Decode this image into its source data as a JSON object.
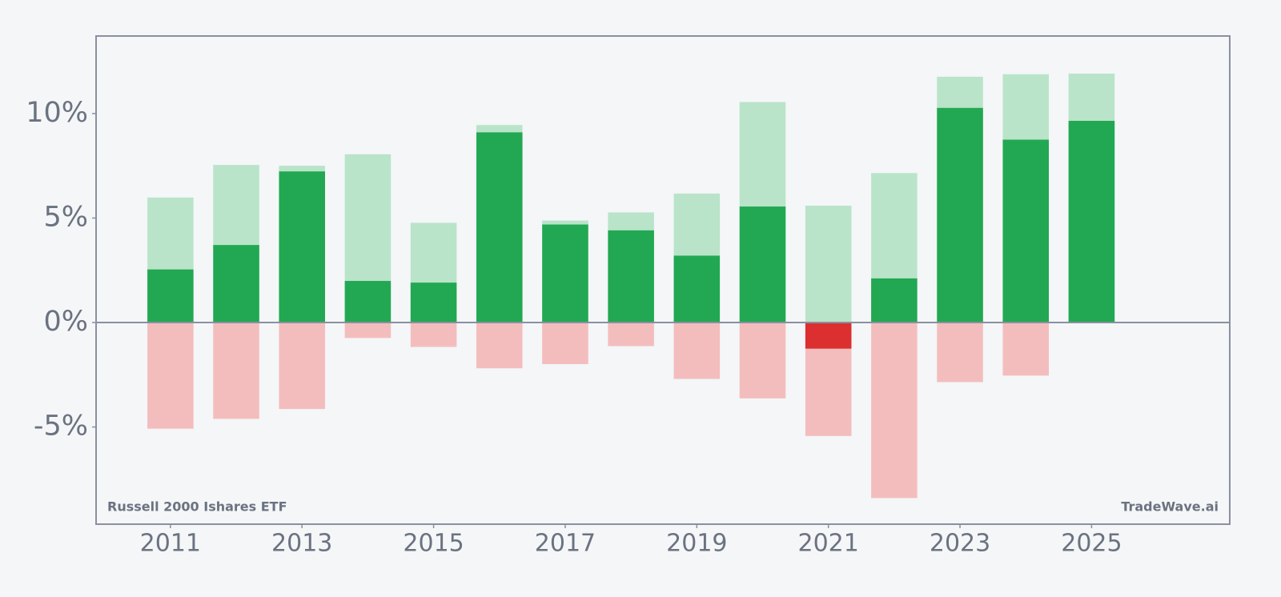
{
  "chart_data": {
    "type": "bar",
    "source": "Russell 2000 Ishares ETF",
    "watermark": "TradeWave.ai",
    "x": [
      2011,
      2012,
      2013,
      2014,
      2015,
      2016,
      2017,
      2018,
      2019,
      2020,
      2021,
      2022,
      2023,
      2024,
      2025
    ],
    "series": [
      {
        "color": "#b9e4c9",
        "values": [
          5.98,
          7.54,
          7.5,
          8.05,
          4.77,
          9.45,
          4.88,
          5.27,
          6.17,
          10.55,
          5.59,
          7.15,
          11.76,
          11.88,
          11.91
        ]
      },
      {
        "color": "#f4bdbd",
        "values": [
          -5.08,
          -4.61,
          -4.14,
          -0.74,
          -1.17,
          -2.19,
          -1.99,
          -1.13,
          -2.7,
          -3.63,
          -5.43,
          -8.4,
          -2.85,
          -2.54,
          null
        ]
      },
      {
        "color": "#22a852",
        "negative_color": "#dc2f2f",
        "values": [
          2.54,
          3.71,
          7.23,
          1.99,
          1.91,
          9.1,
          4.69,
          4.41,
          3.2,
          5.55,
          -1.25,
          2.11,
          10.27,
          8.75,
          9.65
        ]
      }
    ],
    "xlim": [
      2009.87,
      2027.1
    ],
    "xticks": [
      2011,
      2013,
      2015,
      2017,
      2019,
      2021,
      2023,
      2025
    ],
    "ylim": [
      -9.65,
      13.71
    ],
    "yticks": [
      {
        "value": -5,
        "label": "-5%"
      },
      {
        "value": 0,
        "label": "0%"
      },
      {
        "value": 5,
        "label": "5%"
      },
      {
        "value": 10,
        "label": "10%"
      }
    ]
  }
}
